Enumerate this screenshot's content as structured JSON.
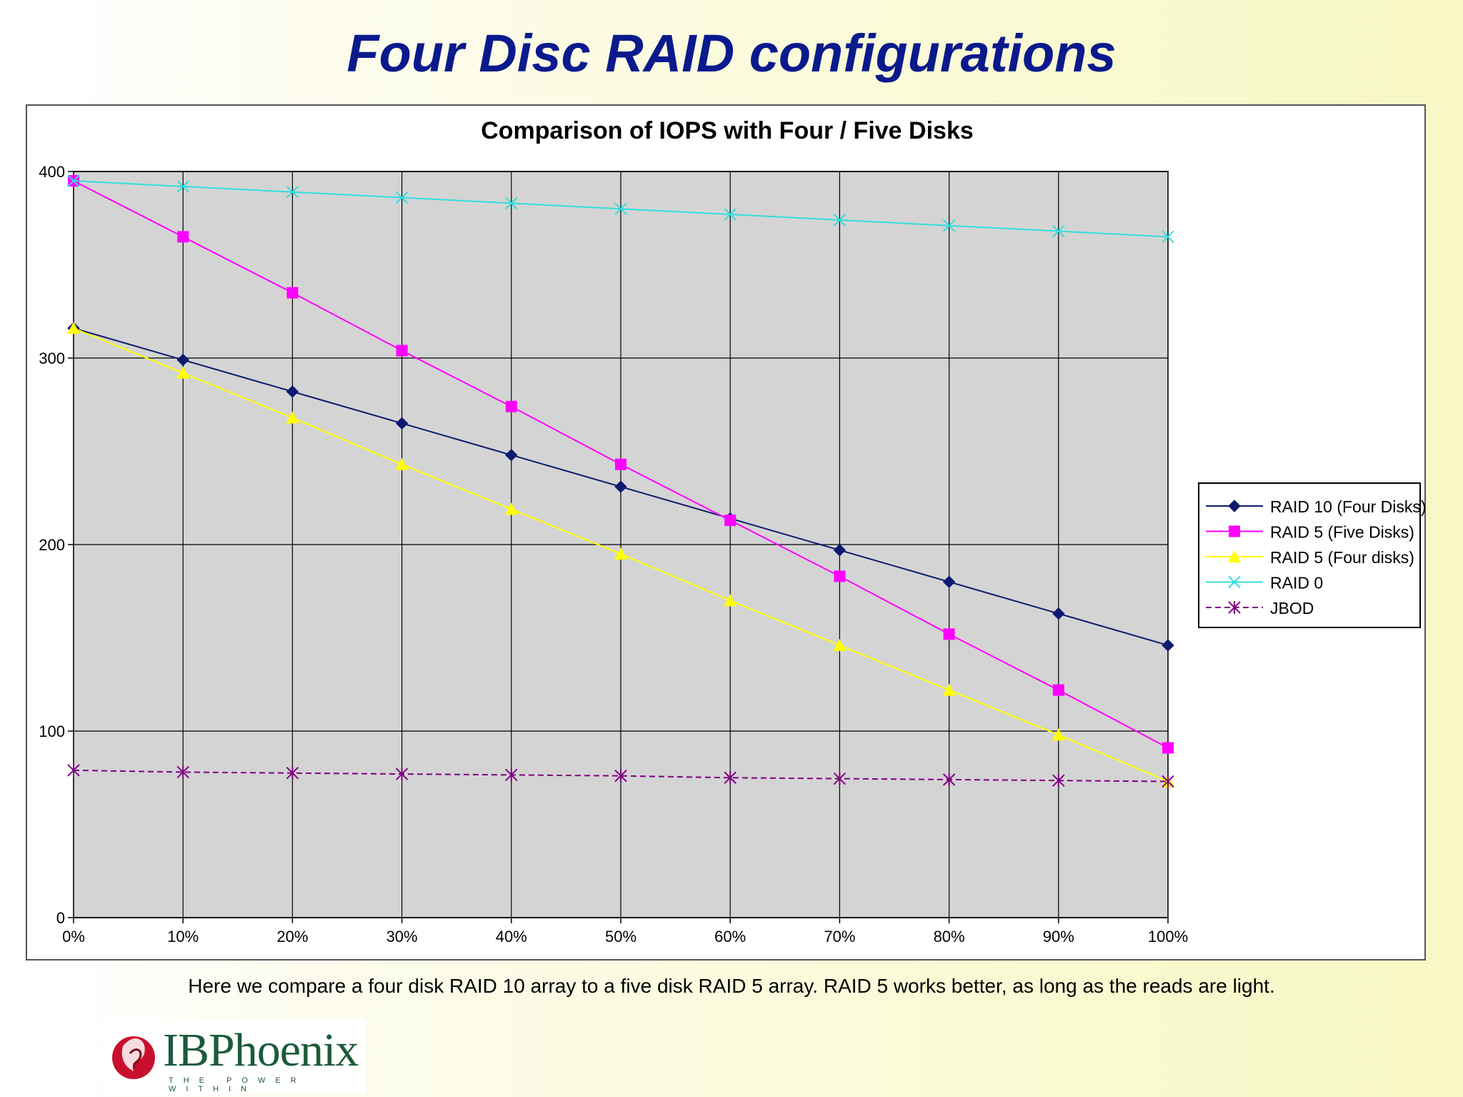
{
  "slide": {
    "title": "Four Disc RAID configurations",
    "caption": "Here we compare a four disk RAID 10 array to a five disk RAID 5 array. RAID 5 works better, as long as the reads are light.",
    "logo_text": "IBPhoenix",
    "logo_tagline": "THE POWER WITHIN"
  },
  "chart_data": {
    "type": "line",
    "title": "Comparison of IOPS with Four / Five Disks",
    "xlabel": "",
    "ylabel": "",
    "categories": [
      "0%",
      "10%",
      "20%",
      "30%",
      "40%",
      "50%",
      "60%",
      "70%",
      "80%",
      "90%",
      "100%"
    ],
    "ylim": [
      0,
      400
    ],
    "yticks": [
      0,
      100,
      200,
      300,
      400
    ],
    "grid": true,
    "plot_background": "#d4d4d4",
    "legend_position": "right",
    "series": [
      {
        "name": "RAID 10 (Four Disks)",
        "color": "#0d1a6e",
        "marker": "diamond",
        "dash": false,
        "values": [
          316,
          299,
          282,
          265,
          248,
          231,
          214,
          197,
          180,
          163,
          146
        ]
      },
      {
        "name": "RAID 5 (Five Disks)",
        "color": "#ff00ff",
        "marker": "square",
        "dash": false,
        "values": [
          395,
          365,
          335,
          304,
          274,
          243,
          213,
          183,
          152,
          122,
          91
        ]
      },
      {
        "name": "RAID 5 (Four disks)",
        "color": "#ffff00",
        "marker": "triangle",
        "dash": false,
        "values": [
          316,
          292,
          268,
          243,
          219,
          195,
          170,
          146,
          122,
          98,
          73
        ]
      },
      {
        "name": "RAID 0",
        "color": "#33dddd",
        "marker": "x",
        "dash": false,
        "values": [
          395,
          392,
          389,
          386,
          383,
          380,
          377,
          374,
          371,
          368,
          365
        ]
      },
      {
        "name": "JBOD",
        "color": "#800080",
        "marker": "star",
        "dash": true,
        "values": [
          79,
          78,
          77.5,
          77,
          76.5,
          76,
          75,
          74.5,
          74,
          73.5,
          73
        ]
      }
    ]
  }
}
